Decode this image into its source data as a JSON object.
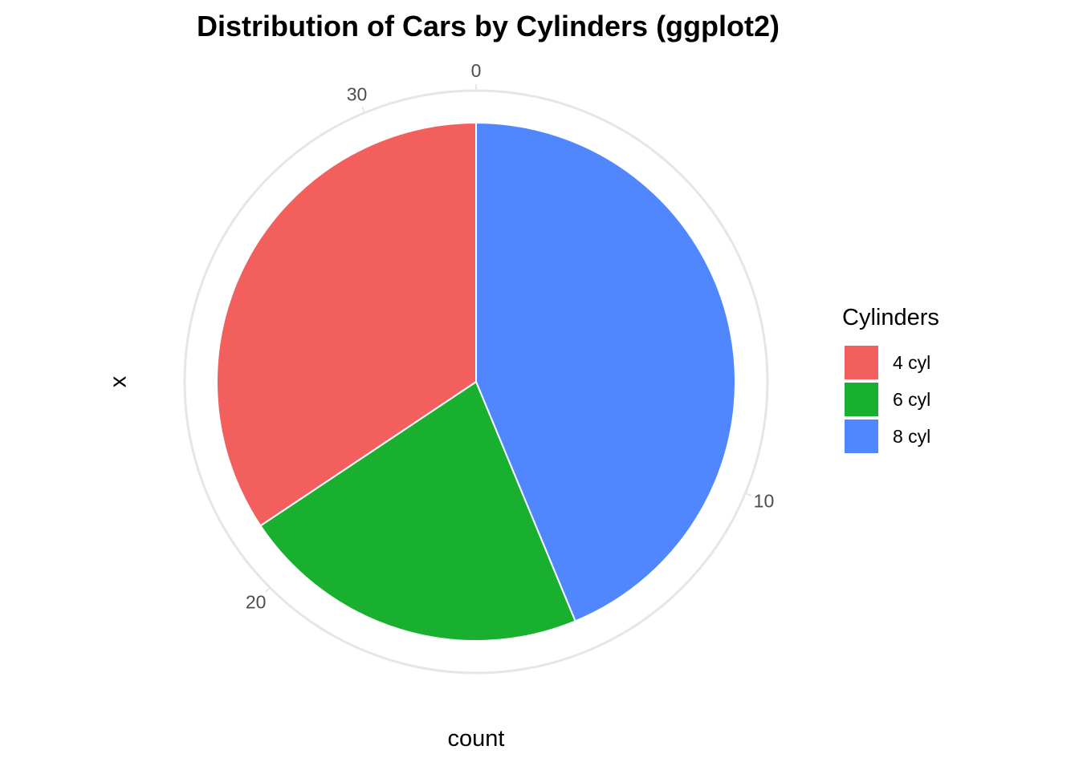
{
  "chart_data": {
    "type": "pie",
    "title": "Distribution of Cars by Cylinders (ggplot2)",
    "xlabel": "count",
    "ylabel": "x",
    "categories": [
      "4 cyl",
      "6 cyl",
      "8 cyl"
    ],
    "values": [
      11,
      7,
      14
    ],
    "colors": [
      "#F25F5C",
      "#1AB02F",
      "#5087FF"
    ],
    "angular_ticks": [
      "0",
      "10",
      "20",
      "30"
    ],
    "angular_tick_values": [
      0,
      10,
      20,
      30
    ],
    "total": 32,
    "direction": "clockwise",
    "start": "top",
    "legend": {
      "title": "Cylinders",
      "position": "right"
    },
    "grid": true
  }
}
